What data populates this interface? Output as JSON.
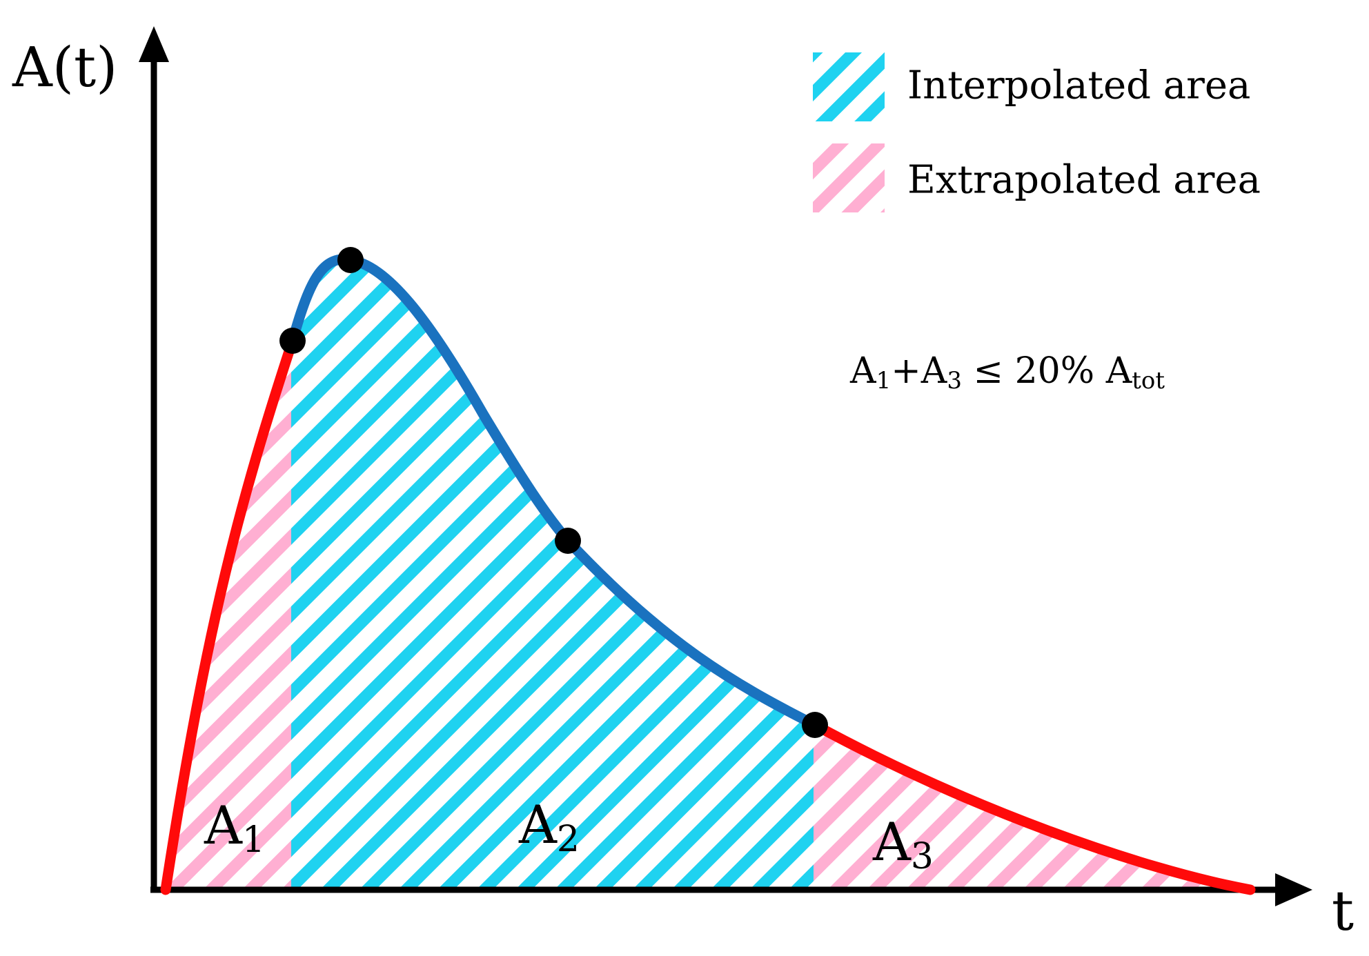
{
  "axes": {
    "y_label": "A(t)",
    "x_label": "t"
  },
  "legend": [
    {
      "label": "Interpolated area",
      "color": "#1fd2f0",
      "pattern": "diagonal-hatch"
    },
    {
      "label": "Extrapolated area",
      "color": "#ffafd2",
      "pattern": "diagonal-hatch"
    }
  ],
  "regions": {
    "a1": {
      "base": "A",
      "sub": "1"
    },
    "a2": {
      "base": "A",
      "sub": "2"
    },
    "a3": {
      "base": "A",
      "sub": "3"
    }
  },
  "formula": {
    "t1": "A",
    "s1": "1",
    "t2": "+A",
    "s2": "3",
    "t3": " ≤ 20% A",
    "s3": "tot"
  },
  "colors": {
    "interpolated_curve": "#1a72bf",
    "extrapolated_curve": "#ff0a0a",
    "interpolated_hatch": "#1fd2f0",
    "extrapolated_hatch": "#ffafd2",
    "axis": "#000000",
    "point": "#000000"
  }
}
